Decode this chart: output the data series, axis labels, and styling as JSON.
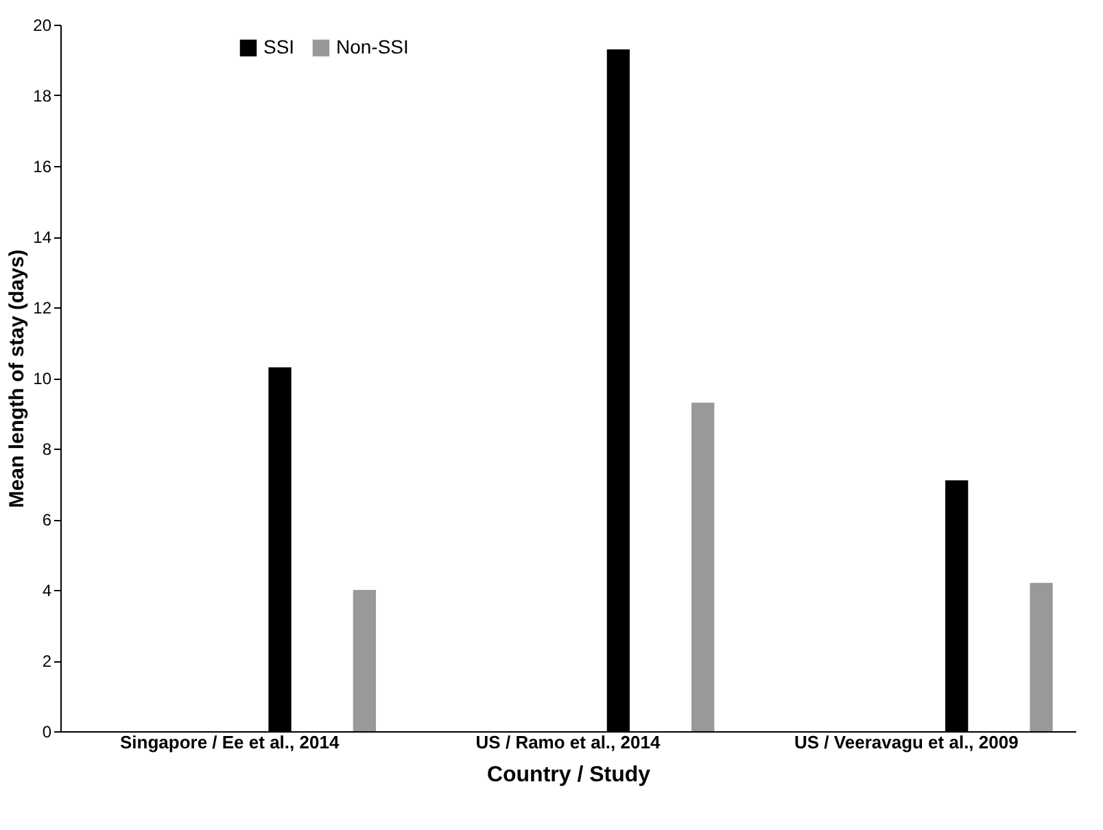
{
  "chart_data": {
    "type": "bar",
    "xlabel": "Country / Study",
    "ylabel": "Mean length of stay (days)",
    "categories": [
      "Singapore /  Ee et al., 2014",
      "US / Ramo et al., 2014",
      "US / Veeravagu et al., 2009"
    ],
    "series": [
      {
        "name": "SSI",
        "color": "#000000",
        "values": [
          10.3,
          19.3,
          7.1
        ]
      },
      {
        "name": "Non-SSI",
        "color": "#999999",
        "values": [
          4.0,
          9.3,
          4.2
        ]
      }
    ],
    "ylim": [
      0,
      20
    ],
    "yticks": [
      0,
      2,
      4,
      6,
      8,
      10,
      12,
      14,
      16,
      18,
      20
    ],
    "grid": false,
    "legend": "top left"
  }
}
